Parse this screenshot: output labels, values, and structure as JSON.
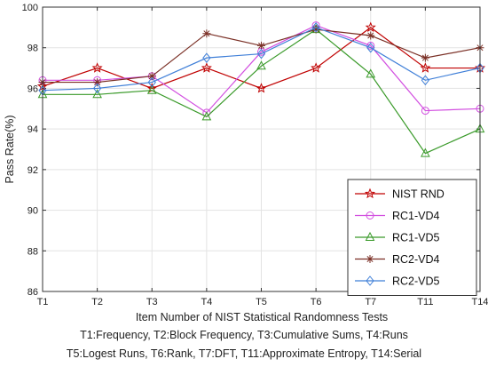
{
  "chart_data": {
    "type": "line",
    "categories": [
      "T1",
      "T2",
      "T3",
      "T4",
      "T5",
      "T6",
      "T7",
      "T11",
      "T14"
    ],
    "ylabel": "Pass Rate(%)",
    "xlabel": "Item Number of NIST Statistical Randomness Tests",
    "ylim": [
      86,
      100
    ],
    "yticks": [
      86,
      88,
      90,
      92,
      94,
      96,
      98,
      100
    ],
    "grid": true,
    "legend_position": "bottom-right",
    "series": [
      {
        "name": "NIST RND",
        "color": "#c00000",
        "marker": "star",
        "values": [
          96.1,
          97.0,
          96.0,
          97.0,
          96.0,
          97.0,
          99.0,
          97.0,
          97.0
        ]
      },
      {
        "name": "RC1-VD4",
        "color": "#d24fe0",
        "marker": "circle",
        "values": [
          96.4,
          96.4,
          96.6,
          94.8,
          97.8,
          99.1,
          98.1,
          94.9,
          95.0
        ]
      },
      {
        "name": "RC1-VD5",
        "color": "#3a9a2a",
        "marker": "triangle",
        "values": [
          95.7,
          95.7,
          95.9,
          94.6,
          97.1,
          98.9,
          96.7,
          92.8,
          94.0
        ]
      },
      {
        "name": "RC2-VD4",
        "color": "#7a2f25",
        "marker": "asterisk",
        "values": [
          96.3,
          96.3,
          96.6,
          98.7,
          98.1,
          98.9,
          98.6,
          97.5,
          98.0
        ]
      },
      {
        "name": "RC2-VD5",
        "color": "#3f7fd8",
        "marker": "diamond",
        "values": [
          95.9,
          96.0,
          96.3,
          97.5,
          97.7,
          99.0,
          98.0,
          96.4,
          97.0
        ]
      }
    ]
  },
  "captions": {
    "line1": "T1:Frequency, T2:Block Frequency, T3:Cumulative Sums, T4:Runs",
    "line2": "T5:Logest Runs, T6:Rank, T7:DFT, T11:Approximate Entropy, T14:Serial"
  }
}
